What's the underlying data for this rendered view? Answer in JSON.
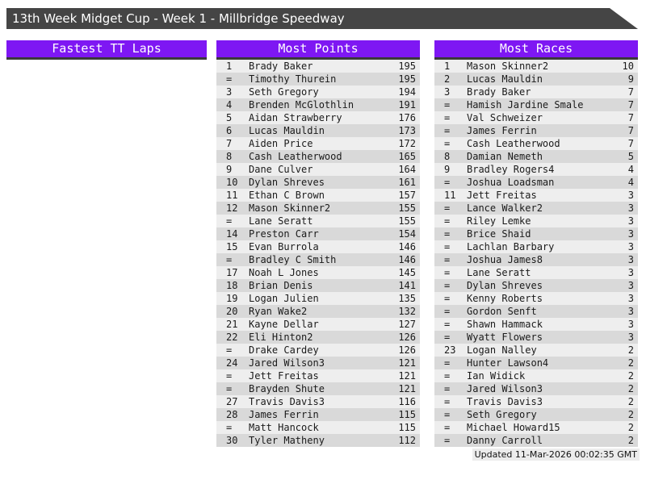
{
  "title": "13th Week Midget Cup - Week 1 - Millbridge Speedway",
  "footer": {
    "updated": "Updated 11-Mar-2026 00:02:35 GMT"
  },
  "colors": {
    "title_bar": "#454545",
    "section_header": "#7e17f3",
    "row_light": "#eeeeee",
    "row_dark": "#d9d9d9"
  },
  "sections": {
    "fastest_tt": {
      "header": "Fastest TT Laps",
      "rows": []
    },
    "most_points": {
      "header": "Most Points",
      "rows": [
        {
          "rank": "1",
          "name": "Brady Baker",
          "value": "195"
        },
        {
          "rank": "=",
          "name": "Timothy Thurein",
          "value": "195"
        },
        {
          "rank": "3",
          "name": "Seth Gregory",
          "value": "194"
        },
        {
          "rank": "4",
          "name": "Brenden McGlothlin",
          "value": "191"
        },
        {
          "rank": "5",
          "name": "Aidan Strawberry",
          "value": "176"
        },
        {
          "rank": "6",
          "name": "Lucas Mauldin",
          "value": "173"
        },
        {
          "rank": "7",
          "name": "Aiden Price",
          "value": "172"
        },
        {
          "rank": "8",
          "name": "Cash Leatherwood",
          "value": "165"
        },
        {
          "rank": "9",
          "name": "Dane Culver",
          "value": "164"
        },
        {
          "rank": "10",
          "name": "Dylan Shreves",
          "value": "161"
        },
        {
          "rank": "11",
          "name": "Ethan C Brown",
          "value": "157"
        },
        {
          "rank": "12",
          "name": "Mason Skinner2",
          "value": "155"
        },
        {
          "rank": "=",
          "name": "Lane Seratt",
          "value": "155"
        },
        {
          "rank": "14",
          "name": "Preston Carr",
          "value": "154"
        },
        {
          "rank": "15",
          "name": "Evan Burrola",
          "value": "146"
        },
        {
          "rank": "=",
          "name": "Bradley C Smith",
          "value": "146"
        },
        {
          "rank": "17",
          "name": "Noah L Jones",
          "value": "145"
        },
        {
          "rank": "18",
          "name": "Brian Denis",
          "value": "141"
        },
        {
          "rank": "19",
          "name": "Logan Julien",
          "value": "135"
        },
        {
          "rank": "20",
          "name": "Ryan Wake2",
          "value": "132"
        },
        {
          "rank": "21",
          "name": "Kayne Dellar",
          "value": "127"
        },
        {
          "rank": "22",
          "name": "Eli Hinton2",
          "value": "126"
        },
        {
          "rank": "=",
          "name": "Drake Cardey",
          "value": "126"
        },
        {
          "rank": "24",
          "name": "Jared Wilson3",
          "value": "121"
        },
        {
          "rank": "=",
          "name": "Jett Freitas",
          "value": "121"
        },
        {
          "rank": "=",
          "name": "Brayden Shute",
          "value": "121"
        },
        {
          "rank": "27",
          "name": "Travis Davis3",
          "value": "116"
        },
        {
          "rank": "28",
          "name": "James Ferrin",
          "value": "115"
        },
        {
          "rank": "=",
          "name": "Matt Hancock",
          "value": "115"
        },
        {
          "rank": "30",
          "name": "Tyler Matheny",
          "value": "112"
        }
      ]
    },
    "most_races": {
      "header": "Most Races",
      "rows": [
        {
          "rank": "1",
          "name": "Mason Skinner2",
          "value": "10"
        },
        {
          "rank": "2",
          "name": "Lucas Mauldin",
          "value": "9"
        },
        {
          "rank": "3",
          "name": "Brady Baker",
          "value": "7"
        },
        {
          "rank": "=",
          "name": "Hamish Jardine Smale",
          "value": "7"
        },
        {
          "rank": "=",
          "name": "Val Schweizer",
          "value": "7"
        },
        {
          "rank": "=",
          "name": "James Ferrin",
          "value": "7"
        },
        {
          "rank": "=",
          "name": "Cash Leatherwood",
          "value": "7"
        },
        {
          "rank": "8",
          "name": "Damian Nemeth",
          "value": "5"
        },
        {
          "rank": "9",
          "name": "Bradley Rogers4",
          "value": "4"
        },
        {
          "rank": "=",
          "name": "Joshua Loadsman",
          "value": "4"
        },
        {
          "rank": "11",
          "name": "Jett Freitas",
          "value": "3"
        },
        {
          "rank": "=",
          "name": "Lance Walker2",
          "value": "3"
        },
        {
          "rank": "=",
          "name": "Riley Lemke",
          "value": "3"
        },
        {
          "rank": "=",
          "name": "Brice Shaid",
          "value": "3"
        },
        {
          "rank": "=",
          "name": "Lachlan Barbary",
          "value": "3"
        },
        {
          "rank": "=",
          "name": "Joshua James8",
          "value": "3"
        },
        {
          "rank": "=",
          "name": "Lane Seratt",
          "value": "3"
        },
        {
          "rank": "=",
          "name": "Dylan Shreves",
          "value": "3"
        },
        {
          "rank": "=",
          "name": "Kenny Roberts",
          "value": "3"
        },
        {
          "rank": "=",
          "name": "Gordon Senft",
          "value": "3"
        },
        {
          "rank": "=",
          "name": "Shawn Hammack",
          "value": "3"
        },
        {
          "rank": "=",
          "name": "Wyatt Flowers",
          "value": "3"
        },
        {
          "rank": "23",
          "name": "Logan Nalley",
          "value": "2"
        },
        {
          "rank": "=",
          "name": "Hunter Lawson4",
          "value": "2"
        },
        {
          "rank": "=",
          "name": "Ian Widick",
          "value": "2"
        },
        {
          "rank": "=",
          "name": "Jared Wilson3",
          "value": "2"
        },
        {
          "rank": "=",
          "name": "Travis Davis3",
          "value": "2"
        },
        {
          "rank": "=",
          "name": "Seth Gregory",
          "value": "2"
        },
        {
          "rank": "=",
          "name": "Michael Howard15",
          "value": "2"
        },
        {
          "rank": "=",
          "name": "Danny Carroll",
          "value": "2"
        }
      ]
    }
  }
}
